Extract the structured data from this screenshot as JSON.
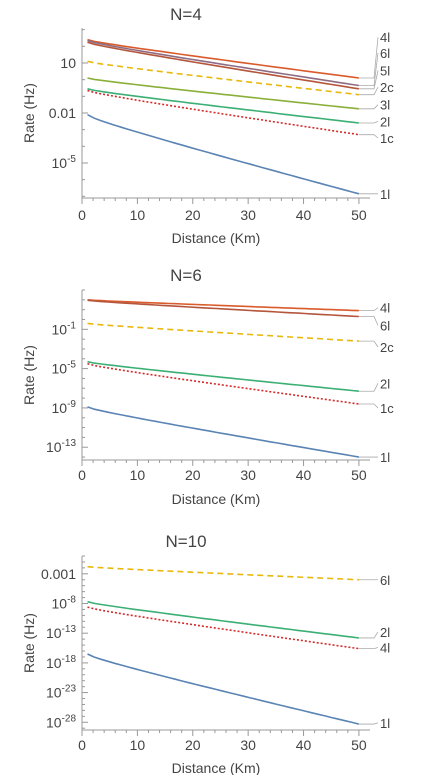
{
  "chart_data": [
    {
      "type": "line",
      "title": "N=4",
      "xlabel": "Distance (Km)",
      "ylabel": "Rate (Hz)",
      "xlim": [
        0,
        52
      ],
      "ylim": [
        -7.1,
        3.1
      ],
      "yscale": "log10",
      "x_ticks": [
        0,
        10,
        20,
        30,
        40,
        50
      ],
      "y_ticks": [
        {
          "exp": 1,
          "label": "10"
        },
        {
          "exp": -2,
          "label": "0.01"
        },
        {
          "exp": -5,
          "label": "10",
          "sup": "-5"
        }
      ],
      "series": [
        {
          "name": "4l",
          "color": "#d95b2b",
          "dash": "",
          "x": [
            1,
            50
          ],
          "log10_y": [
            2.4,
            0.1
          ],
          "label_log10_y": 2.55
        },
        {
          "name": "6l",
          "color": "#8e6d84",
          "dash": "",
          "x": [
            1,
            50
          ],
          "log10_y": [
            2.35,
            -0.35
          ],
          "label_log10_y": 1.6
        },
        {
          "name": "5l",
          "color": "#b5563c",
          "dash": "",
          "x": [
            1,
            50
          ],
          "log10_y": [
            2.25,
            -0.55
          ],
          "label_log10_y": 0.55
        },
        {
          "name": "2c",
          "color": "#e8b80c",
          "dash": "6,4",
          "x": [
            1,
            50
          ],
          "log10_y": [
            1.1,
            -0.9
          ],
          "label_log10_y": -0.45
        },
        {
          "name": "3l",
          "color": "#8ab03a",
          "dash": "",
          "x": [
            1,
            50
          ],
          "log10_y": [
            0.1,
            -1.75
          ],
          "label_log10_y": -1.5
        },
        {
          "name": "2l",
          "color": "#3caf75",
          "dash": "",
          "x": [
            1,
            50
          ],
          "log10_y": [
            -0.55,
            -2.6
          ],
          "label_log10_y": -2.5
        },
        {
          "name": "1c",
          "color": "#d42a2a",
          "dash": "2,2",
          "x": [
            1,
            50
          ],
          "log10_y": [
            -0.65,
            -3.3
          ],
          "label_log10_y": -3.5
        },
        {
          "name": "1l",
          "color": "#5a84b4",
          "dash": "",
          "x": [
            1,
            50
          ],
          "log10_y": [
            -2.1,
            -6.85
          ],
          "label_log10_y": -6.85
        }
      ]
    },
    {
      "type": "line",
      "title": "N=6",
      "xlabel": "Distance (Km)",
      "ylabel": "Rate (Hz)",
      "xlim": [
        0,
        52
      ],
      "ylim": [
        -14.3,
        3.0
      ],
      "yscale": "log10",
      "x_ticks": [
        0,
        10,
        20,
        30,
        40,
        50
      ],
      "y_ticks": [
        {
          "exp": -1,
          "label": "10",
          "sup": "-1"
        },
        {
          "exp": -5,
          "label": "10",
          "sup": "-5"
        },
        {
          "exp": -9,
          "label": "10",
          "sup": "-9"
        },
        {
          "exp": -13,
          "label": "10",
          "sup": "-13"
        }
      ],
      "series": [
        {
          "name": "4l",
          "color": "#d95b2b",
          "dash": "",
          "x": [
            1,
            50
          ],
          "log10_y": [
            2.0,
            0.9
          ],
          "label_log10_y": 1.2
        },
        {
          "name": "6l",
          "color": "#b5563c",
          "dash": "",
          "x": [
            1,
            50
          ],
          "log10_y": [
            1.95,
            0.3
          ],
          "label_log10_y": -0.6
        },
        {
          "name": "2c",
          "color": "#e8b80c",
          "dash": "6,4",
          "x": [
            1,
            50
          ],
          "log10_y": [
            -0.4,
            -2.2
          ],
          "label_log10_y": -2.8
        },
        {
          "name": "2l",
          "color": "#3caf75",
          "dash": "",
          "x": [
            1,
            50
          ],
          "log10_y": [
            -4.3,
            -7.3
          ],
          "label_log10_y": -6.5
        },
        {
          "name": "1c",
          "color": "#d42a2a",
          "dash": "2,2",
          "x": [
            1,
            50
          ],
          "log10_y": [
            -4.5,
            -8.6
          ],
          "label_log10_y": -9.0
        },
        {
          "name": "1l",
          "color": "#5a84b4",
          "dash": "",
          "x": [
            1,
            50
          ],
          "log10_y": [
            -8.9,
            -14.0
          ],
          "label_log10_y": -14.0
        }
      ]
    },
    {
      "type": "line",
      "title": "N=10",
      "xlabel": "Distance (Km)",
      "ylabel": "Rate (Hz)",
      "xlim": [
        0,
        52
      ],
      "ylim": [
        -29.3,
        0.0
      ],
      "yscale": "log10",
      "x_ticks": [
        0,
        10,
        20,
        30,
        40,
        50
      ],
      "y_ticks": [
        {
          "exp": -3,
          "label": "0.001"
        },
        {
          "exp": -8,
          "label": "10",
          "sup": "-8"
        },
        {
          "exp": -13,
          "label": "10",
          "sup": "-13"
        },
        {
          "exp": -18,
          "label": "10",
          "sup": "-18"
        },
        {
          "exp": -23,
          "label": "10",
          "sup": "-23"
        },
        {
          "exp": -28,
          "label": "10",
          "sup": "-28"
        }
      ],
      "series": [
        {
          "name": "6l",
          "color": "#e8b80c",
          "dash": "6,4",
          "x": [
            1,
            50
          ],
          "log10_y": [
            -1.8,
            -4.0
          ],
          "label_log10_y": -4.0
        },
        {
          "name": "2l",
          "color": "#3caf75",
          "dash": "",
          "x": [
            1,
            50
          ],
          "log10_y": [
            -7.7,
            -13.8
          ],
          "label_log10_y": -12.8
        },
        {
          "name": "4l",
          "color": "#d42a2a",
          "dash": "2,2",
          "x": [
            1,
            50
          ],
          "log10_y": [
            -8.6,
            -15.6
          ],
          "label_log10_y": -15.4
        },
        {
          "name": "1l",
          "color": "#5a84b4",
          "dash": "",
          "x": [
            1,
            50
          ],
          "log10_y": [
            -16.5,
            -28.3
          ],
          "label_log10_y": -28.1
        }
      ]
    }
  ]
}
